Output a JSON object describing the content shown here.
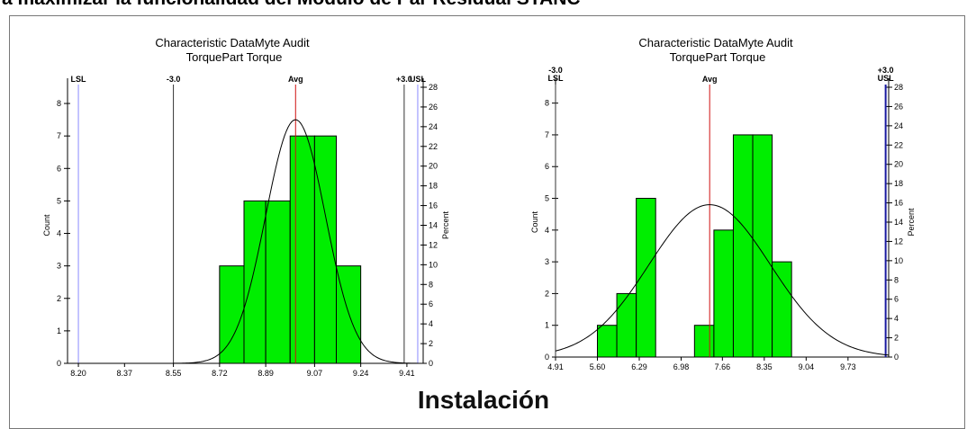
{
  "header": {
    "banner": "a maximizar la funcionalidad del Modulo de Par Residual STANC"
  },
  "footer": {
    "title": "Instalación"
  },
  "chart_data": [
    {
      "type": "bar",
      "title": "Characteristic DataMyte Audit",
      "subtitle": "TorquePart Torque",
      "ylabel": "Count",
      "y2label": "Percent",
      "xlim": [
        8.16,
        9.47
      ],
      "ylim": [
        0,
        8.5
      ],
      "y2lim": [
        0,
        28
      ],
      "x_ticks": [
        "8.20",
        "8.37",
        "8.55",
        "8.72",
        "8.89",
        "9.07",
        "9.24",
        "9.41"
      ],
      "y_ticks": [
        "0",
        "1",
        "2",
        "3",
        "4",
        "5",
        "6",
        "7",
        "8"
      ],
      "y2_ticks": [
        "0",
        "2",
        "4",
        "6",
        "8",
        "10",
        "12",
        "14",
        "16",
        "18",
        "20",
        "22",
        "24",
        "26",
        "28"
      ],
      "bins": [
        {
          "start": 8.72,
          "end": 8.81,
          "count": 3
        },
        {
          "start": 8.81,
          "end": 8.89,
          "count": 5
        },
        {
          "start": 8.89,
          "end": 8.98,
          "count": 5
        },
        {
          "start": 8.98,
          "end": 9.07,
          "count": 7
        },
        {
          "start": 9.07,
          "end": 9.15,
          "count": 7
        },
        {
          "start": 9.15,
          "end": 9.24,
          "count": 3
        }
      ],
      "curve": {
        "mean": 9.0,
        "sd": 0.11,
        "peak_count": 7.5
      },
      "ref_lines": [
        {
          "name": "lsl",
          "label": "LSL",
          "label2": "",
          "x": 8.2,
          "color": "#8a8aff"
        },
        {
          "name": "minus3",
          "label": "-3.0",
          "label2": "",
          "x": 8.55,
          "color": "#333333"
        },
        {
          "name": "avg",
          "label": "Avg",
          "label2": "",
          "x": 9.0,
          "color": "#d01010"
        },
        {
          "name": "plus3",
          "label": "+3.0",
          "label2": "",
          "x": 9.4,
          "color": "#333333"
        },
        {
          "name": "usl",
          "label": "USL",
          "label2": "",
          "x": 9.45,
          "color": "#8a8aff"
        }
      ],
      "bar_color": "#00ee00",
      "grid": false
    },
    {
      "type": "bar",
      "title": "Characteristic DataMyte Audit",
      "subtitle": "TorquePart Torque",
      "ylabel": "Count",
      "y2label": "Percent",
      "xlim": [
        4.91,
        10.4
      ],
      "ylim": [
        0,
        8.5
      ],
      "y2lim": [
        0,
        28
      ],
      "x_ticks": [
        "4.91",
        "5.60",
        "6.29",
        "6.98",
        "7.66",
        "8.35",
        "9.04",
        "9.73"
      ],
      "y_ticks": [
        "0",
        "1",
        "2",
        "3",
        "4",
        "5",
        "6",
        "7",
        "8"
      ],
      "y2_ticks": [
        "0",
        "2",
        "4",
        "6",
        "8",
        "10",
        "12",
        "14",
        "16",
        "18",
        "20",
        "22",
        "24",
        "26",
        "28"
      ],
      "bins": [
        {
          "start": 5.6,
          "end": 5.92,
          "count": 1
        },
        {
          "start": 5.92,
          "end": 6.24,
          "count": 2
        },
        {
          "start": 6.24,
          "end": 6.56,
          "count": 5
        },
        {
          "start": 6.56,
          "end": 6.88,
          "count": 0
        },
        {
          "start": 6.88,
          "end": 7.2,
          "count": 0
        },
        {
          "start": 7.2,
          "end": 7.52,
          "count": 1
        },
        {
          "start": 7.52,
          "end": 7.84,
          "count": 4
        },
        {
          "start": 7.84,
          "end": 8.16,
          "count": 7
        },
        {
          "start": 8.16,
          "end": 8.48,
          "count": 7
        },
        {
          "start": 8.48,
          "end": 8.8,
          "count": 3
        }
      ],
      "curve": {
        "mean": 7.45,
        "sd": 1.0,
        "peak_count": 4.8
      },
      "ref_lines": [
        {
          "name": "minus3-lsl",
          "label": "-3.0",
          "label2": "LSL",
          "x": 4.91,
          "color": "#333333"
        },
        {
          "name": "avg",
          "label": "Avg",
          "label2": "",
          "x": 7.45,
          "color": "#d01010"
        },
        {
          "name": "plus3-usl",
          "label": "+3.0",
          "label2": "USL",
          "x": 10.35,
          "color": "#1a1aa0"
        }
      ],
      "bar_color": "#00ee00",
      "grid": false
    }
  ]
}
